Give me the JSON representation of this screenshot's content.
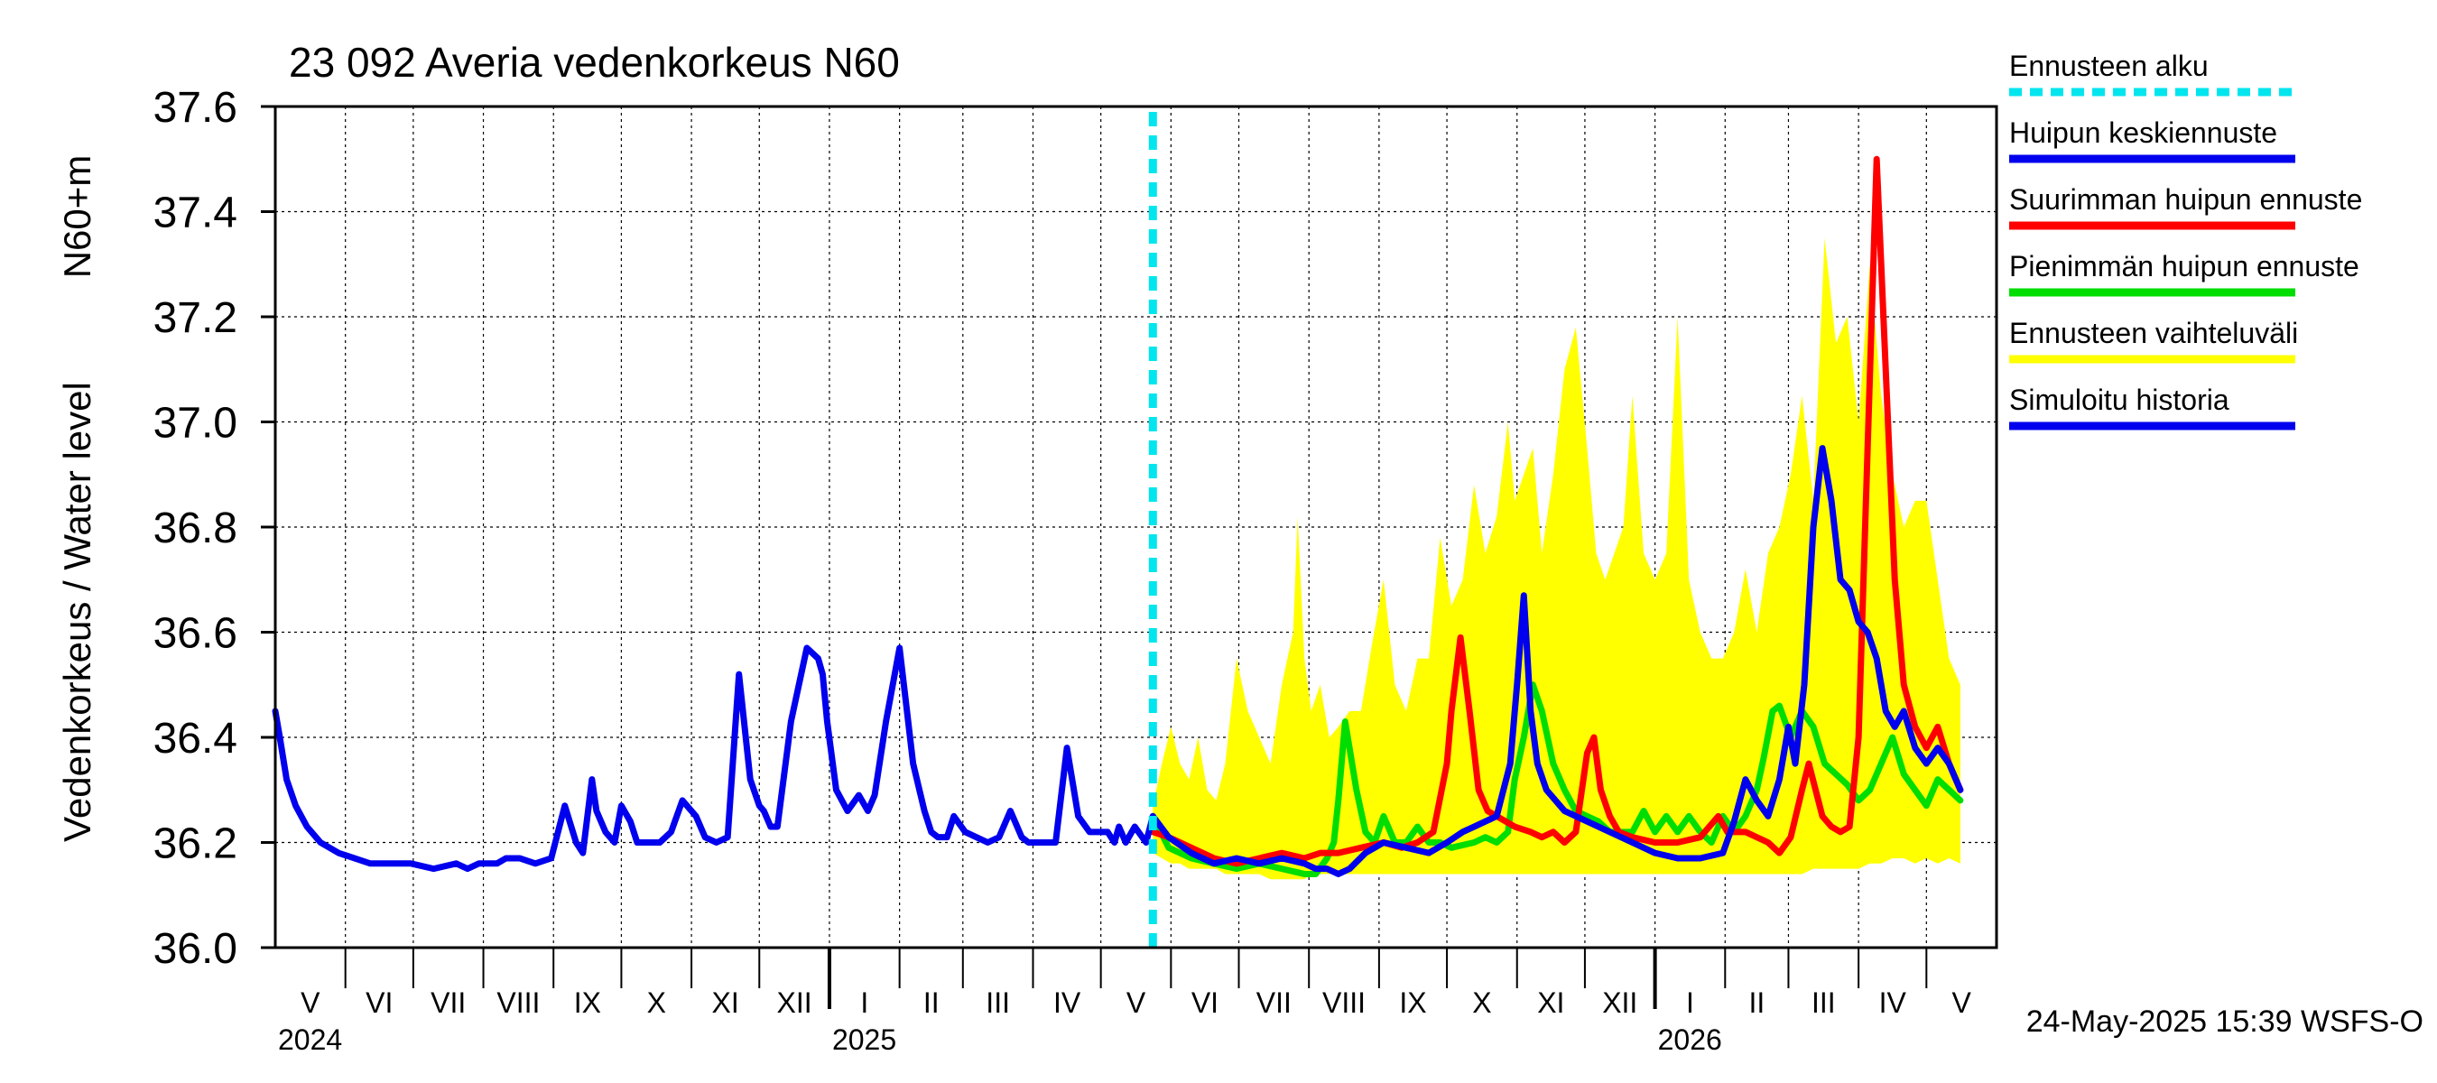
{
  "chart_data": {
    "type": "line",
    "title": "23 092 Averia vedenkorkeus N60",
    "ylabel_left": "Vedenkorkeus / Water level",
    "ylabel_right": "N60+m",
    "ylim": [
      36.0,
      37.6
    ],
    "yticks": [
      "36.0",
      "36.2",
      "36.4",
      "36.6",
      "36.8",
      "37.0",
      "37.2",
      "37.4",
      "37.6"
    ],
    "x_start": "2024-05-01",
    "x_end": "2026-05-31",
    "month_labels": [
      "V",
      "VI",
      "VII",
      "VIII",
      "IX",
      "X",
      "XI",
      "XII",
      "I",
      "II",
      "III",
      "IV",
      "V",
      "VI",
      "VII",
      "VIII",
      "IX",
      "X",
      "XI",
      "XII",
      "I",
      "II",
      "III",
      "IV",
      "V"
    ],
    "year_labels": [
      "2024",
      "2025",
      "2026"
    ],
    "forecast_start_day": 388,
    "timestamp": "24-May-2025 15:39 WSFS-O",
    "legend": [
      {
        "label": "Ennusteen alku",
        "color": "#00e5ee",
        "dashed": true
      },
      {
        "label": "Huipun keskiennuste",
        "color": "#0000ee"
      },
      {
        "label": "Suurimman huipun ennuste",
        "color": "#ff0000"
      },
      {
        "label": "Pienimmän huipun ennuste",
        "color": "#00dd00"
      },
      {
        "label": "Ennusteen vaihteluväli",
        "color": "#ffff00"
      },
      {
        "label": "Simuloitu historia",
        "color": "#0000ee"
      }
    ],
    "series": [
      {
        "name": "Simuloitu historia",
        "color": "#0000ee",
        "x": [
          0,
          2,
          5,
          9,
          14,
          20,
          28,
          35,
          42,
          52,
          60,
          70,
          80,
          85,
          90,
          95,
          98,
          102,
          108,
          115,
          122,
          128,
          133,
          136,
          140,
          142,
          146,
          150,
          153,
          157,
          160,
          165,
          170,
          175,
          180,
          186,
          190,
          195,
          200,
          205,
          210,
          214,
          216,
          219,
          222,
          228,
          235,
          240,
          242,
          244,
          248,
          253,
          258,
          262,
          265,
          270,
          276,
          282,
          287,
          290,
          293,
          297,
          300,
          305,
          310,
          315,
          320,
          325,
          330,
          333,
          336,
          340,
          345,
          350,
          355,
          360,
          365,
          368,
          371,
          373,
          376,
          380,
          385,
          388
        ],
        "y": [
          36.45,
          36.4,
          36.32,
          36.27,
          36.23,
          36.2,
          36.18,
          36.17,
          36.16,
          36.16,
          36.16,
          36.15,
          36.16,
          36.15,
          36.16,
          36.16,
          36.16,
          36.17,
          36.17,
          36.16,
          36.17,
          36.27,
          36.2,
          36.18,
          36.32,
          36.26,
          36.22,
          36.2,
          36.27,
          36.24,
          36.2,
          36.2,
          36.2,
          36.22,
          36.28,
          36.25,
          36.21,
          36.2,
          36.21,
          36.52,
          36.32,
          36.27,
          36.26,
          36.23,
          36.23,
          36.43,
          36.57,
          36.55,
          36.52,
          36.43,
          36.3,
          36.26,
          36.29,
          36.26,
          36.29,
          36.43,
          36.57,
          36.35,
          36.26,
          36.22,
          36.21,
          36.21,
          36.25,
          36.22,
          36.21,
          36.2,
          36.21,
          36.26,
          36.21,
          36.2,
          36.2,
          36.2,
          36.2,
          36.38,
          36.25,
          36.22,
          36.22,
          36.22,
          36.2,
          36.23,
          36.2,
          36.23,
          36.2,
          36.25
        ]
      },
      {
        "name": "Pienimmän huipun ennuste",
        "color": "#00dd00",
        "x": [
          388,
          395,
          405,
          415,
          425,
          435,
          445,
          455,
          460,
          465,
          468,
          470,
          473,
          478,
          482,
          486,
          490,
          495,
          500,
          505,
          510,
          515,
          520,
          530,
          535,
          540,
          545,
          548,
          552,
          556,
          560,
          565,
          570,
          575,
          580,
          585,
          590,
          595,
          600,
          605,
          610,
          615,
          620,
          625,
          630,
          635,
          640,
          645,
          650,
          655,
          658,
          662,
          665,
          670,
          675,
          680,
          685,
          690,
          695,
          700,
          705,
          710,
          715,
          720,
          725,
          730,
          735,
          740,
          745
        ],
        "y": [
          36.25,
          36.19,
          36.17,
          36.16,
          36.15,
          36.16,
          36.15,
          36.14,
          36.14,
          36.17,
          36.2,
          36.28,
          36.43,
          36.3,
          36.22,
          36.2,
          36.25,
          36.2,
          36.2,
          36.23,
          36.2,
          36.2,
          36.19,
          36.2,
          36.21,
          36.2,
          36.22,
          36.32,
          36.4,
          36.5,
          36.45,
          36.35,
          36.3,
          36.26,
          36.25,
          36.24,
          36.22,
          36.22,
          36.22,
          36.26,
          36.22,
          36.25,
          36.22,
          36.25,
          36.22,
          36.2,
          36.25,
          36.22,
          36.25,
          36.3,
          36.36,
          36.45,
          36.46,
          36.4,
          36.45,
          36.42,
          36.35,
          36.33,
          36.31,
          36.28,
          36.3,
          36.35,
          36.4,
          36.33,
          36.3,
          36.27,
          36.32,
          36.3,
          36.28
        ]
      },
      {
        "name": "Suurimman huipun ennuste",
        "color": "#ff0000",
        "x": [
          388,
          395,
          405,
          415,
          425,
          435,
          445,
          455,
          462,
          470,
          480,
          490,
          498,
          505,
          512,
          518,
          520,
          524,
          528,
          532,
          536,
          540,
          548,
          555,
          560,
          565,
          570,
          575,
          580,
          583,
          586,
          590,
          594,
          600,
          610,
          620,
          630,
          638,
          642,
          650,
          660,
          665,
          670,
          675,
          678,
          684,
          688,
          692,
          696,
          700,
          704,
          708,
          712,
          716,
          720,
          725,
          730,
          735,
          740,
          745
        ],
        "y": [
          36.22,
          36.21,
          36.19,
          36.17,
          36.16,
          36.17,
          36.18,
          36.17,
          36.18,
          36.18,
          36.19,
          36.2,
          36.19,
          36.2,
          36.22,
          36.35,
          36.45,
          36.59,
          36.45,
          36.3,
          36.26,
          36.25,
          36.23,
          36.22,
          36.21,
          36.22,
          36.2,
          36.22,
          36.37,
          36.4,
          36.3,
          36.25,
          36.22,
          36.21,
          36.2,
          36.2,
          36.21,
          36.25,
          36.22,
          36.22,
          36.2,
          36.18,
          36.21,
          36.3,
          36.35,
          36.25,
          36.23,
          36.22,
          36.23,
          36.4,
          36.95,
          37.5,
          37.1,
          36.7,
          36.5,
          36.42,
          36.38,
          36.42,
          36.35,
          36.3
        ]
      },
      {
        "name": "Huipun keskiennuste",
        "color": "#0000ee",
        "x": [
          388,
          395,
          405,
          415,
          425,
          435,
          445,
          455,
          460,
          465,
          470,
          475,
          482,
          490,
          500,
          510,
          518,
          525,
          530,
          535,
          540,
          546,
          549,
          552,
          555,
          558,
          562,
          566,
          570,
          580,
          590,
          600,
          610,
          620,
          630,
          640,
          645,
          650,
          655,
          660,
          665,
          669,
          672,
          676,
          680,
          684,
          688,
          692,
          696,
          700,
          704,
          708,
          712,
          716,
          720,
          725,
          730,
          735,
          740,
          745
        ],
        "y": [
          36.25,
          36.21,
          36.18,
          36.16,
          36.17,
          36.16,
          36.17,
          36.16,
          36.15,
          36.15,
          36.14,
          36.15,
          36.18,
          36.2,
          36.19,
          36.18,
          36.2,
          36.22,
          36.23,
          36.24,
          36.25,
          36.35,
          36.5,
          36.67,
          36.45,
          36.35,
          36.3,
          36.28,
          36.26,
          36.24,
          36.22,
          36.2,
          36.18,
          36.17,
          36.17,
          36.18,
          36.24,
          36.32,
          36.28,
          36.25,
          36.32,
          36.42,
          36.35,
          36.5,
          36.8,
          36.95,
          36.85,
          36.7,
          36.68,
          36.62,
          36.6,
          36.55,
          36.45,
          36.42,
          36.45,
          36.38,
          36.35,
          36.38,
          36.35,
          36.3
        ]
      }
    ],
    "range_band": {
      "name": "Ennusteen vaihteluväli",
      "color": "#ffff00",
      "x": [
        388,
        392,
        396,
        400,
        404,
        408,
        412,
        416,
        420,
        425,
        430,
        435,
        440,
        445,
        450,
        452,
        455,
        458,
        462,
        466,
        470,
        475,
        480,
        485,
        490,
        495,
        500,
        505,
        510,
        515,
        520,
        525,
        530,
        535,
        540,
        545,
        548,
        552,
        556,
        560,
        565,
        570,
        575,
        580,
        584,
        588,
        592,
        596,
        600,
        605,
        610,
        615,
        620,
        625,
        630,
        635,
        640,
        645,
        650,
        655,
        660,
        665,
        670,
        675,
        680,
        685,
        690,
        695,
        700,
        705,
        710,
        715,
        720,
        725,
        730,
        735,
        740,
        745
      ],
      "upper": [
        36.27,
        36.35,
        36.42,
        36.35,
        36.32,
        36.4,
        36.3,
        36.28,
        36.35,
        36.55,
        36.45,
        36.4,
        36.35,
        36.5,
        36.6,
        36.82,
        36.55,
        36.45,
        36.5,
        36.4,
        36.42,
        36.45,
        36.45,
        36.58,
        36.7,
        36.5,
        36.45,
        36.55,
        36.55,
        36.78,
        36.65,
        36.7,
        36.88,
        36.75,
        36.82,
        37.0,
        36.85,
        36.9,
        36.95,
        36.75,
        36.9,
        37.1,
        37.18,
        36.95,
        36.75,
        36.7,
        36.75,
        36.8,
        37.05,
        36.75,
        36.7,
        36.75,
        37.2,
        36.7,
        36.6,
        36.55,
        36.55,
        36.6,
        36.72,
        36.6,
        36.75,
        36.8,
        36.9,
        37.05,
        36.85,
        37.35,
        37.15,
        37.2,
        37.0,
        37.3,
        37.05,
        36.9,
        36.8,
        36.85,
        36.85,
        36.7,
        36.55,
        36.5
      ],
      "lower": [
        36.18,
        36.17,
        36.16,
        36.16,
        36.15,
        36.15,
        36.15,
        36.15,
        36.14,
        36.14,
        36.14,
        36.14,
        36.13,
        36.13,
        36.13,
        36.13,
        36.13,
        36.14,
        36.14,
        36.14,
        36.14,
        36.14,
        36.14,
        36.14,
        36.14,
        36.14,
        36.14,
        36.14,
        36.14,
        36.14,
        36.14,
        36.14,
        36.14,
        36.14,
        36.14,
        36.14,
        36.14,
        36.14,
        36.14,
        36.14,
        36.14,
        36.14,
        36.14,
        36.14,
        36.14,
        36.14,
        36.14,
        36.14,
        36.14,
        36.14,
        36.14,
        36.14,
        36.14,
        36.14,
        36.14,
        36.14,
        36.14,
        36.14,
        36.14,
        36.14,
        36.14,
        36.14,
        36.14,
        36.14,
        36.15,
        36.15,
        36.15,
        36.15,
        36.15,
        36.16,
        36.16,
        36.17,
        36.17,
        36.16,
        36.17,
        36.16,
        36.17,
        36.16
      ]
    }
  }
}
